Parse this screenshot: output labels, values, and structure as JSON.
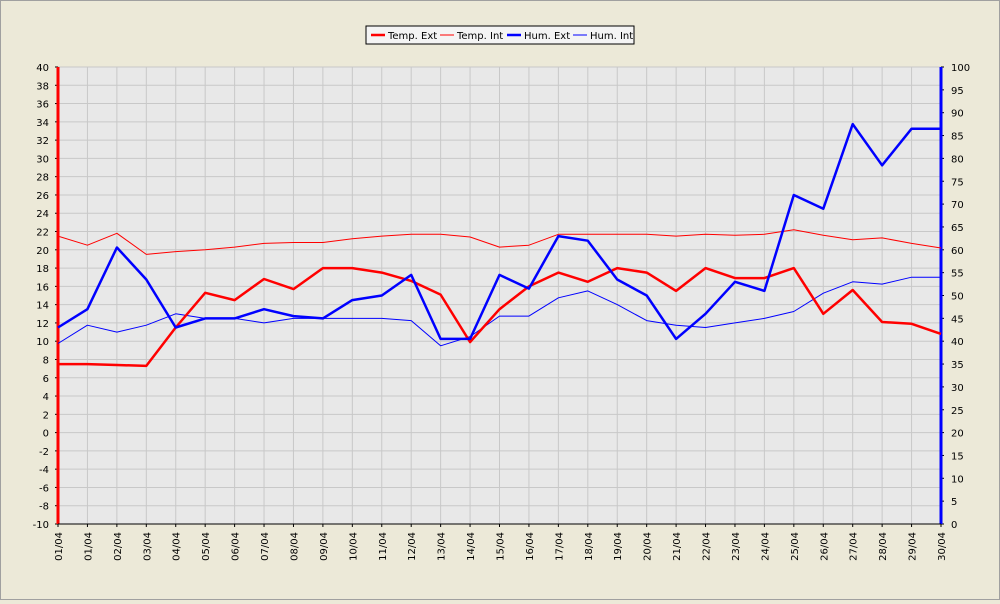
{
  "colors": {
    "background": "#ece9d8",
    "plot_background": "#e8e8e8",
    "grid": "#c8c8c8",
    "red": "#ff0000",
    "blue": "#0000ff"
  },
  "chart_data": {
    "type": "line",
    "title": "",
    "xlabel": "",
    "ylabel": "",
    "y2label": "",
    "categories": [
      "01/04",
      "01/04",
      "02/04",
      "03/04",
      "04/04",
      "05/04",
      "06/04",
      "07/04",
      "08/04",
      "09/04",
      "10/04",
      "11/04",
      "12/04",
      "13/04",
      "14/04",
      "15/04",
      "16/04",
      "17/04",
      "18/04",
      "19/04",
      "20/04",
      "21/04",
      "22/04",
      "23/04",
      "24/04",
      "25/04",
      "26/04",
      "27/04",
      "28/04",
      "29/04",
      "30/04"
    ],
    "ylim": [
      -10,
      40
    ],
    "y_ticks": [
      40,
      38,
      36,
      34,
      32,
      30,
      28,
      26,
      24,
      22,
      20,
      18,
      16,
      14,
      12,
      10,
      8,
      6,
      4,
      2,
      0,
      -2,
      -4,
      -6,
      -8,
      -10
    ],
    "y2lim": [
      0,
      100
    ],
    "y2_ticks": [
      100,
      95,
      90,
      85,
      80,
      75,
      70,
      65,
      60,
      55,
      50,
      45,
      40,
      35,
      30,
      25,
      20,
      15,
      10,
      5,
      0
    ],
    "grid": true,
    "legend_position": "top-center",
    "series": [
      {
        "name": "Temp. Ext",
        "axis": "left",
        "color": "#ff0000",
        "width": 2.5,
        "values": [
          7.5,
          7.5,
          7.4,
          7.3,
          11.5,
          15.3,
          14.5,
          16.8,
          15.7,
          18.0,
          18.0,
          17.5,
          16.6,
          15.1,
          9.9,
          13.5,
          16.0,
          17.5,
          16.5,
          18.0,
          17.5,
          15.5,
          18.0,
          16.9,
          16.9,
          18.0,
          13.0,
          15.6,
          12.1,
          11.9,
          10.8
        ]
      },
      {
        "name": "Temp. Int",
        "axis": "left",
        "color": "#ff0000",
        "width": 1,
        "values": [
          21.5,
          20.5,
          21.8,
          19.5,
          19.8,
          20.0,
          20.3,
          20.7,
          20.8,
          20.8,
          21.2,
          21.5,
          21.7,
          21.7,
          21.4,
          20.3,
          20.5,
          21.7,
          21.7,
          21.7,
          21.7,
          21.5,
          21.7,
          21.6,
          21.7,
          22.2,
          21.6,
          21.1,
          21.3,
          20.7,
          20.2
        ]
      },
      {
        "name": "Hum. Ext",
        "axis": "right",
        "color": "#0000ff",
        "width": 2.5,
        "values": [
          43.0,
          47.0,
          60.5,
          53.5,
          43.0,
          45.0,
          45.0,
          47.0,
          45.5,
          45.0,
          49.0,
          50.0,
          54.5,
          40.5,
          40.5,
          54.5,
          51.5,
          63.0,
          62.0,
          53.5,
          50.0,
          40.5,
          46.0,
          53.0,
          51.0,
          72.0,
          69.0,
          87.5,
          78.5,
          86.5,
          86.5
        ]
      },
      {
        "name": "Hum. Int",
        "axis": "right",
        "color": "#0000ff",
        "width": 1,
        "values": [
          39.5,
          43.5,
          42.0,
          43.5,
          46.0,
          45.0,
          45.0,
          44.0,
          45.0,
          45.0,
          45.0,
          45.0,
          44.5,
          39.0,
          41.0,
          45.5,
          45.5,
          49.5,
          51.0,
          48.0,
          44.5,
          43.5,
          43.0,
          44.0,
          45.0,
          46.5,
          50.5,
          53.0,
          52.5,
          54.0,
          54.0
        ]
      }
    ]
  }
}
